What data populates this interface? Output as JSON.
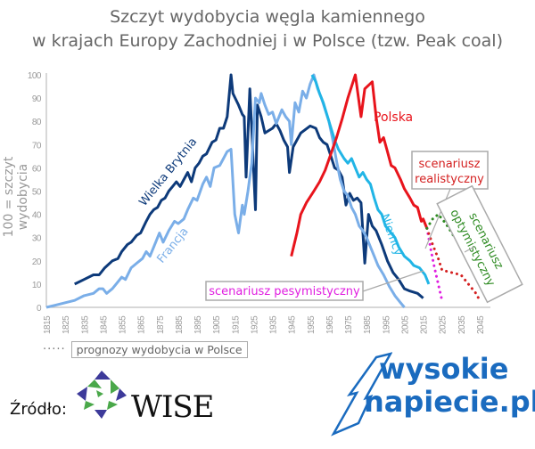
{
  "title": {
    "line1": "Szczyt wydobycia węgla kamiennego",
    "line2": "w krajach Europy Zachodniej i w Polsce (tzw. Peak coal)"
  },
  "legend": {
    "dots": "·····",
    "label": "prognozy wydobycia w Polsce"
  },
  "source": {
    "label": "Źródło:",
    "org": "WISE"
  },
  "branding": {
    "line1": "wysokie",
    "line2": "napiecie.pl",
    "color": "#1a6bbf"
  },
  "chart_data": {
    "type": "line",
    "title": "Szczyt wydobycia węgla kamiennego w krajach Europy Zachodniej i w Polsce (tzw. Peak coal)",
    "xlabel": "",
    "ylabel": "100 = szczyt wydobycia",
    "xlim": [
      1815,
      2050
    ],
    "ylim": [
      0,
      100
    ],
    "x_ticks": [
      1815,
      1825,
      1835,
      1845,
      1855,
      1865,
      1875,
      1885,
      1895,
      1905,
      1915,
      1925,
      1935,
      1945,
      1955,
      1965,
      1975,
      1985,
      1995,
      2005,
      2015,
      2025,
      2035,
      2045
    ],
    "y_ticks": [
      0,
      10,
      20,
      30,
      40,
      50,
      60,
      70,
      80,
      90,
      100
    ],
    "grid": false,
    "legend_position": "bottom-left",
    "series": [
      {
        "name": "Wielka Brytnia",
        "color": "#0d3a7a",
        "style": "solid",
        "points": [
          [
            1830,
            10
          ],
          [
            1835,
            12
          ],
          [
            1840,
            14
          ],
          [
            1843,
            14
          ],
          [
            1846,
            17
          ],
          [
            1850,
            20
          ],
          [
            1853,
            21
          ],
          [
            1855,
            24
          ],
          [
            1858,
            27
          ],
          [
            1860,
            28
          ],
          [
            1863,
            31
          ],
          [
            1865,
            32
          ],
          [
            1868,
            37
          ],
          [
            1870,
            40
          ],
          [
            1872,
            42
          ],
          [
            1874,
            43
          ],
          [
            1876,
            46
          ],
          [
            1878,
            47
          ],
          [
            1880,
            50
          ],
          [
            1882,
            52
          ],
          [
            1884,
            54
          ],
          [
            1886,
            52
          ],
          [
            1888,
            55
          ],
          [
            1890,
            58
          ],
          [
            1892,
            54
          ],
          [
            1894,
            60
          ],
          [
            1896,
            62
          ],
          [
            1898,
            65
          ],
          [
            1900,
            66
          ],
          [
            1903,
            71
          ],
          [
            1905,
            72
          ],
          [
            1907,
            77
          ],
          [
            1909,
            77
          ],
          [
            1911,
            82
          ],
          [
            1913,
            100
          ],
          [
            1914,
            92
          ],
          [
            1917,
            87
          ],
          [
            1919,
            83
          ],
          [
            1920,
            82
          ],
          [
            1921,
            56
          ],
          [
            1923,
            94
          ],
          [
            1926,
            42
          ],
          [
            1927,
            87
          ],
          [
            1929,
            82
          ],
          [
            1931,
            75
          ],
          [
            1933,
            76
          ],
          [
            1935,
            77
          ],
          [
            1937,
            79
          ],
          [
            1939,
            76
          ],
          [
            1941,
            72
          ],
          [
            1943,
            69
          ],
          [
            1944,
            58
          ],
          [
            1946,
            69
          ],
          [
            1950,
            75
          ],
          [
            1955,
            78
          ],
          [
            1958,
            77
          ],
          [
            1960,
            73
          ],
          [
            1962,
            71
          ],
          [
            1964,
            70
          ],
          [
            1966,
            65
          ],
          [
            1968,
            60
          ],
          [
            1970,
            59
          ],
          [
            1972,
            56
          ],
          [
            1974,
            44
          ],
          [
            1976,
            49
          ],
          [
            1978,
            46
          ],
          [
            1980,
            47
          ],
          [
            1982,
            45
          ],
          [
            1984,
            19
          ],
          [
            1986,
            40
          ],
          [
            1988,
            35
          ],
          [
            1990,
            33
          ],
          [
            1993,
            27
          ],
          [
            1996,
            20
          ],
          [
            1999,
            15
          ],
          [
            2002,
            12
          ],
          [
            2005,
            8
          ],
          [
            2008,
            7
          ],
          [
            2012,
            6
          ],
          [
            2015,
            4
          ]
        ]
      },
      {
        "name": "Francja",
        "color": "#7aaee8",
        "style": "solid",
        "points": [
          [
            1815,
            0
          ],
          [
            1820,
            1
          ],
          [
            1825,
            2
          ],
          [
            1830,
            3
          ],
          [
            1835,
            5
          ],
          [
            1840,
            6
          ],
          [
            1843,
            8
          ],
          [
            1845,
            8
          ],
          [
            1847,
            6
          ],
          [
            1850,
            8
          ],
          [
            1852,
            10
          ],
          [
            1855,
            13
          ],
          [
            1857,
            12
          ],
          [
            1860,
            17
          ],
          [
            1863,
            19
          ],
          [
            1866,
            21
          ],
          [
            1868,
            24
          ],
          [
            1870,
            22
          ],
          [
            1873,
            28
          ],
          [
            1875,
            32
          ],
          [
            1877,
            28
          ],
          [
            1880,
            33
          ],
          [
            1883,
            37
          ],
          [
            1885,
            36
          ],
          [
            1888,
            38
          ],
          [
            1890,
            42
          ],
          [
            1893,
            47
          ],
          [
            1895,
            46
          ],
          [
            1898,
            53
          ],
          [
            1900,
            56
          ],
          [
            1902,
            52
          ],
          [
            1904,
            60
          ],
          [
            1907,
            61
          ],
          [
            1909,
            64
          ],
          [
            1911,
            67
          ],
          [
            1913,
            68
          ],
          [
            1915,
            40
          ],
          [
            1917,
            32
          ],
          [
            1919,
            44
          ],
          [
            1920,
            40
          ],
          [
            1922,
            50
          ],
          [
            1924,
            62
          ],
          [
            1926,
            90
          ],
          [
            1928,
            88
          ],
          [
            1929,
            92
          ],
          [
            1931,
            87
          ],
          [
            1933,
            83
          ],
          [
            1935,
            84
          ],
          [
            1937,
            79
          ],
          [
            1940,
            85
          ],
          [
            1942,
            82
          ],
          [
            1944,
            80
          ],
          [
            1945,
            70
          ],
          [
            1947,
            88
          ],
          [
            1949,
            84
          ],
          [
            1951,
            93
          ],
          [
            1953,
            90
          ],
          [
            1955,
            96
          ],
          [
            1957,
            100
          ],
          [
            1959,
            94
          ],
          [
            1961,
            90
          ],
          [
            1963,
            85
          ],
          [
            1965,
            80
          ],
          [
            1967,
            72
          ],
          [
            1969,
            63
          ],
          [
            1971,
            55
          ],
          [
            1973,
            50
          ],
          [
            1975,
            48
          ],
          [
            1977,
            43
          ],
          [
            1979,
            40
          ],
          [
            1981,
            35
          ],
          [
            1983,
            33
          ],
          [
            1985,
            30
          ],
          [
            1987,
            26
          ],
          [
            1989,
            22
          ],
          [
            1991,
            18
          ],
          [
            1994,
            14
          ],
          [
            1997,
            9
          ],
          [
            2000,
            5
          ],
          [
            2003,
            2
          ],
          [
            2005,
            0
          ]
        ]
      },
      {
        "name": "Niemcy",
        "color": "#21b5e6",
        "style": "solid",
        "points": [
          [
            1956,
            100
          ],
          [
            1958,
            97
          ],
          [
            1960,
            92
          ],
          [
            1962,
            88
          ],
          [
            1965,
            80
          ],
          [
            1968,
            72
          ],
          [
            1970,
            68
          ],
          [
            1973,
            64
          ],
          [
            1975,
            62
          ],
          [
            1977,
            64
          ],
          [
            1979,
            60
          ],
          [
            1981,
            56
          ],
          [
            1983,
            58
          ],
          [
            1985,
            55
          ],
          [
            1987,
            53
          ],
          [
            1989,
            47
          ],
          [
            1991,
            42
          ],
          [
            1993,
            40
          ],
          [
            1995,
            35
          ],
          [
            1998,
            32
          ],
          [
            2000,
            30
          ],
          [
            2002,
            26
          ],
          [
            2005,
            22
          ],
          [
            2008,
            20
          ],
          [
            2010,
            18
          ],
          [
            2013,
            17
          ],
          [
            2016,
            14
          ],
          [
            2018,
            10
          ]
        ]
      },
      {
        "name": "Polska",
        "color": "#e8141c",
        "style": "solid",
        "points": [
          [
            1945,
            22
          ],
          [
            1948,
            32
          ],
          [
            1950,
            40
          ],
          [
            1953,
            45
          ],
          [
            1957,
            50
          ],
          [
            1960,
            54
          ],
          [
            1963,
            59
          ],
          [
            1966,
            66
          ],
          [
            1969,
            73
          ],
          [
            1972,
            81
          ],
          [
            1975,
            90
          ],
          [
            1979,
            100
          ],
          [
            1982,
            82
          ],
          [
            1984,
            94
          ],
          [
            1988,
            97
          ],
          [
            1990,
            82
          ],
          [
            1992,
            71
          ],
          [
            1994,
            73
          ],
          [
            1996,
            67
          ],
          [
            1998,
            61
          ],
          [
            2000,
            60
          ],
          [
            2003,
            55
          ],
          [
            2005,
            51
          ],
          [
            2008,
            47
          ],
          [
            2010,
            44
          ],
          [
            2012,
            43
          ],
          [
            2014,
            37
          ],
          [
            2015,
            38
          ],
          [
            2017,
            34
          ]
        ]
      },
      {
        "name": "scenariusz pesymistyczny",
        "color": "#e01de0",
        "style": "dotted",
        "points": [
          [
            2017,
            34
          ],
          [
            2019,
            25
          ],
          [
            2021,
            17
          ],
          [
            2023,
            10
          ],
          [
            2025,
            3
          ]
        ]
      },
      {
        "name": "scenariusz realistyczny",
        "color": "#d42020",
        "style": "dotted",
        "points": [
          [
            2017,
            34
          ],
          [
            2020,
            27
          ],
          [
            2023,
            21
          ],
          [
            2025,
            16
          ],
          [
            2030,
            15
          ],
          [
            2035,
            14
          ],
          [
            2037,
            12
          ],
          [
            2040,
            9
          ],
          [
            2043,
            6
          ],
          [
            2045,
            3
          ]
        ]
      },
      {
        "name": "scenariusz optymistyczny",
        "color": "#2e8b22",
        "style": "dotted",
        "points": [
          [
            2017,
            34
          ],
          [
            2020,
            38
          ],
          [
            2023,
            40
          ],
          [
            2027,
            36
          ],
          [
            2031,
            31
          ],
          [
            2035,
            27
          ],
          [
            2040,
            22
          ],
          [
            2043,
            19
          ],
          [
            2045,
            14
          ]
        ]
      }
    ],
    "annotations": [
      {
        "text": "Wielka Brytnia",
        "color": "#0d3a7a"
      },
      {
        "text": "Francja",
        "color": "#7aaee8"
      },
      {
        "text": "Niemcy",
        "color": "#21b5e6"
      },
      {
        "text": "Polska",
        "color": "#e8141c"
      },
      {
        "text": "scenariusz realistyczny",
        "color": "#d42020",
        "boxed": true
      },
      {
        "text": "scenariusz optymistyczny",
        "color": "#2e8b22",
        "boxed": true
      },
      {
        "text": "scenariusz pesymistyczny",
        "color": "#e01de0",
        "boxed": true
      }
    ]
  }
}
